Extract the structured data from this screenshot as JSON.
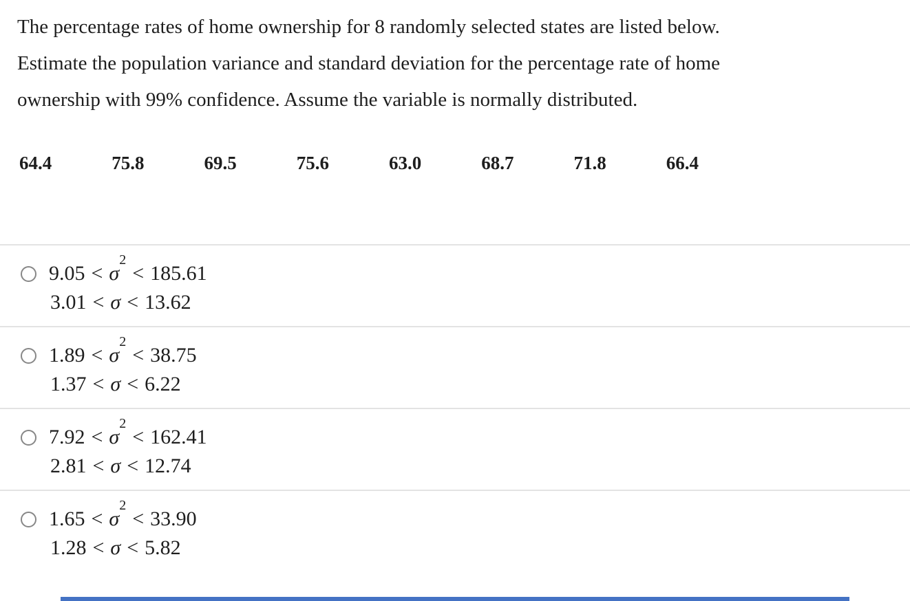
{
  "question": {
    "lines": [
      "The percentage rates of home ownership for 8 randomly selected states are listed below.",
      "Estimate the population variance and standard deviation for the percentage rate of home",
      "ownership with 99% confidence. Assume the variable is normally distributed."
    ]
  },
  "data_values": [
    "64.4",
    "75.8",
    "69.5",
    "75.6",
    "63.0",
    "68.7",
    "71.8",
    "66.4"
  ],
  "math": {
    "sigma": "σ",
    "squared_exponent": "2",
    "less_than": "<"
  },
  "options": [
    {
      "variance_lower": "9.05",
      "variance_upper": "185.61",
      "sd_lower": "3.01",
      "sd_upper": "13.62",
      "selected": false
    },
    {
      "variance_lower": "1.89",
      "variance_upper": "38.75",
      "sd_lower": "1.37",
      "sd_upper": "6.22",
      "selected": false
    },
    {
      "variance_lower": "7.92",
      "variance_upper": "162.41",
      "sd_lower": "2.81",
      "sd_upper": "12.74",
      "selected": false
    },
    {
      "variance_lower": "1.65",
      "variance_upper": "33.90",
      "sd_lower": "1.28",
      "sd_upper": "5.82",
      "selected": false
    }
  ],
  "ui_colors": {
    "accent_bar": "#4472c4",
    "divider": "#e3e3e3",
    "radio_border": "#878787",
    "text": "#1e1e1e"
  }
}
